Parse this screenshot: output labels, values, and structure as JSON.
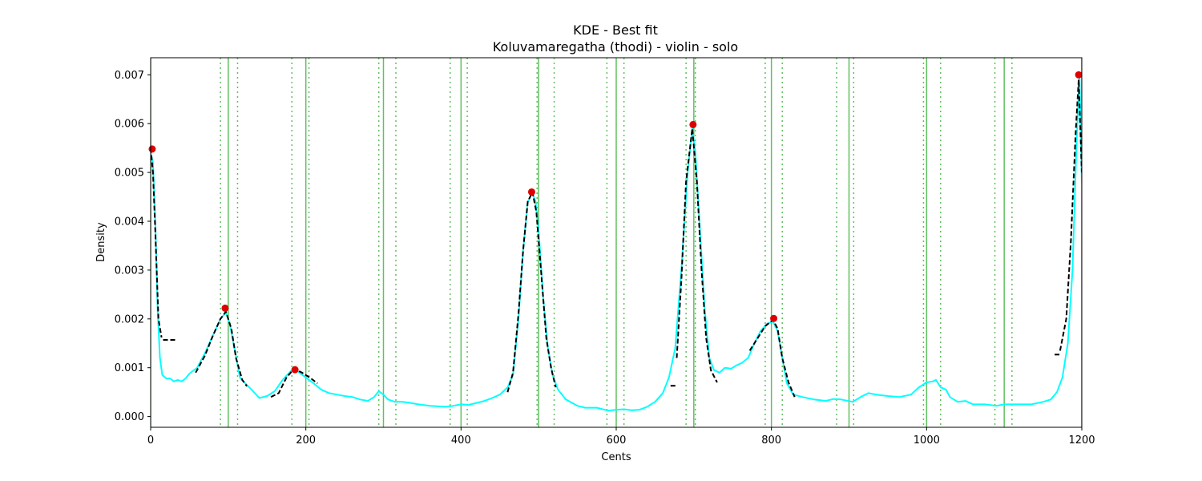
{
  "chart_data": {
    "type": "line",
    "title": "KDE - Best fit",
    "subtitle": "Koluvamaregatha (thodi) - violin - solo",
    "xlabel": "Cents",
    "ylabel": "Density",
    "xlim": [
      0,
      1200
    ],
    "ylim": [
      -0.00022,
      0.00735
    ],
    "xticks": [
      0,
      200,
      400,
      600,
      800,
      1000,
      1200
    ],
    "yticks": [
      0.0,
      0.001,
      0.002,
      0.003,
      0.004,
      0.005,
      0.006,
      0.007
    ],
    "ytick_labels": [
      "0.000",
      "0.001",
      "0.002",
      "0.003",
      "0.004",
      "0.005",
      "0.006",
      "0.007"
    ],
    "grid": false,
    "colors": {
      "kde": "#00ffff",
      "fit": "#000000",
      "peak": "#dd0000",
      "ref_line": "#4fba4f"
    },
    "reference_lines": [
      0,
      100,
      200,
      300,
      400,
      500,
      600,
      700,
      800,
      900,
      1000,
      1100,
      1200
    ],
    "reference_bounds": [
      90,
      112,
      182,
      204,
      294,
      316,
      386,
      408,
      498,
      520,
      588,
      610,
      690,
      702,
      792,
      814,
      884,
      906,
      996,
      1018,
      1088,
      1110
    ],
    "kde_curve": [
      [
        0,
        0.0054
      ],
      [
        3,
        0.0052
      ],
      [
        6,
        0.004
      ],
      [
        9,
        0.0022
      ],
      [
        12,
        0.0012
      ],
      [
        15,
        0.00085
      ],
      [
        20,
        0.00078
      ],
      [
        25,
        0.00078
      ],
      [
        30,
        0.00072
      ],
      [
        35,
        0.00075
      ],
      [
        40,
        0.00072
      ],
      [
        45,
        0.00078
      ],
      [
        50,
        0.00088
      ],
      [
        60,
        0.001
      ],
      [
        70,
        0.0013
      ],
      [
        80,
        0.00165
      ],
      [
        90,
        0.002
      ],
      [
        97,
        0.00213
      ],
      [
        102,
        0.0019
      ],
      [
        108,
        0.0014
      ],
      [
        115,
        0.0008
      ],
      [
        122,
        0.00068
      ],
      [
        130,
        0.00055
      ],
      [
        140,
        0.00038
      ],
      [
        150,
        0.00042
      ],
      [
        160,
        0.00052
      ],
      [
        170,
        0.00075
      ],
      [
        180,
        0.00092
      ],
      [
        185,
        0.00098
      ],
      [
        190,
        0.00092
      ],
      [
        200,
        0.0008
      ],
      [
        210,
        0.00068
      ],
      [
        220,
        0.00055
      ],
      [
        230,
        0.00048
      ],
      [
        240,
        0.00045
      ],
      [
        250,
        0.00042
      ],
      [
        260,
        0.0004
      ],
      [
        270,
        0.00035
      ],
      [
        280,
        0.00032
      ],
      [
        288,
        0.0004
      ],
      [
        294,
        0.00052
      ],
      [
        300,
        0.00045
      ],
      [
        306,
        0.00035
      ],
      [
        315,
        0.0003
      ],
      [
        325,
        0.0003
      ],
      [
        335,
        0.00028
      ],
      [
        345,
        0.00025
      ],
      [
        360,
        0.00022
      ],
      [
        380,
        0.0002
      ],
      [
        390,
        0.00022
      ],
      [
        400,
        0.00025
      ],
      [
        410,
        0.00024
      ],
      [
        420,
        0.00028
      ],
      [
        430,
        0.00032
      ],
      [
        440,
        0.00038
      ],
      [
        450,
        0.00045
      ],
      [
        460,
        0.0006
      ],
      [
        467,
        0.00085
      ],
      [
        474,
        0.002
      ],
      [
        480,
        0.0034
      ],
      [
        486,
        0.0044
      ],
      [
        492,
        0.00458
      ],
      [
        496,
        0.0044
      ],
      [
        500,
        0.0038
      ],
      [
        506,
        0.0024
      ],
      [
        512,
        0.0014
      ],
      [
        518,
        0.00085
      ],
      [
        525,
        0.00055
      ],
      [
        535,
        0.00035
      ],
      [
        550,
        0.00022
      ],
      [
        560,
        0.00018
      ],
      [
        575,
        0.00018
      ],
      [
        590,
        0.00012
      ],
      [
        600,
        0.00014
      ],
      [
        610,
        0.00015
      ],
      [
        620,
        0.00013
      ],
      [
        630,
        0.00014
      ],
      [
        640,
        0.0002
      ],
      [
        650,
        0.0003
      ],
      [
        660,
        0.00048
      ],
      [
        668,
        0.0008
      ],
      [
        676,
        0.0014
      ],
      [
        684,
        0.003
      ],
      [
        692,
        0.005
      ],
      [
        698,
        0.0059
      ],
      [
        702,
        0.0054
      ],
      [
        708,
        0.0038
      ],
      [
        714,
        0.0022
      ],
      [
        720,
        0.0012
      ],
      [
        726,
        0.00095
      ],
      [
        733,
        0.0009
      ],
      [
        740,
        0.001
      ],
      [
        748,
        0.00098
      ],
      [
        755,
        0.00105
      ],
      [
        762,
        0.0011
      ],
      [
        770,
        0.0012
      ],
      [
        778,
        0.0015
      ],
      [
        786,
        0.00175
      ],
      [
        794,
        0.0019
      ],
      [
        802,
        0.00195
      ],
      [
        808,
        0.00175
      ],
      [
        814,
        0.0012
      ],
      [
        820,
        0.00068
      ],
      [
        828,
        0.00045
      ],
      [
        840,
        0.0004
      ],
      [
        855,
        0.00035
      ],
      [
        870,
        0.00032
      ],
      [
        880,
        0.00036
      ],
      [
        890,
        0.00035
      ],
      [
        905,
        0.0003
      ],
      [
        915,
        0.0004
      ],
      [
        925,
        0.00048
      ],
      [
        935,
        0.00045
      ],
      [
        950,
        0.00042
      ],
      [
        965,
        0.0004
      ],
      [
        980,
        0.00045
      ],
      [
        990,
        0.0006
      ],
      [
        1000,
        0.0007
      ],
      [
        1008,
        0.00072
      ],
      [
        1012,
        0.00075
      ],
      [
        1018,
        0.0006
      ],
      [
        1025,
        0.00055
      ],
      [
        1030,
        0.0004
      ],
      [
        1040,
        0.0003
      ],
      [
        1050,
        0.00032
      ],
      [
        1060,
        0.00025
      ],
      [
        1075,
        0.00025
      ],
      [
        1090,
        0.00022
      ],
      [
        1100,
        0.00025
      ],
      [
        1120,
        0.00025
      ],
      [
        1135,
        0.00025
      ],
      [
        1150,
        0.0003
      ],
      [
        1160,
        0.00035
      ],
      [
        1168,
        0.0005
      ],
      [
        1175,
        0.0008
      ],
      [
        1182,
        0.0015
      ],
      [
        1188,
        0.003
      ],
      [
        1193,
        0.0055
      ],
      [
        1197,
        0.007
      ],
      [
        1200,
        0.0048
      ]
    ],
    "fit_segments": [
      [
        [
          0,
          0.0055
        ],
        [
          3,
          0.005
        ],
        [
          6,
          0.0038
        ],
        [
          10,
          0.002
        ],
        [
          14,
          0.00162
        ]
      ],
      [
        [
          16,
          0.00157
        ],
        [
          32,
          0.00157
        ]
      ],
      [
        [
          58,
          0.0009
        ],
        [
          70,
          0.00125
        ],
        [
          80,
          0.00165
        ],
        [
          90,
          0.002
        ],
        [
          97,
          0.00215
        ],
        [
          104,
          0.0018
        ],
        [
          110,
          0.0012
        ],
        [
          118,
          0.00075
        ],
        [
          124,
          0.00062
        ]
      ],
      [
        [
          155,
          0.0004
        ],
        [
          165,
          0.00048
        ],
        [
          175,
          0.0008
        ],
        [
          185,
          0.00098
        ],
        [
          195,
          0.0009
        ],
        [
          205,
          0.0008
        ],
        [
          215,
          0.00068
        ]
      ],
      [
        [
          460,
          0.0005
        ],
        [
          467,
          0.0009
        ],
        [
          474,
          0.0021
        ],
        [
          480,
          0.0034
        ],
        [
          486,
          0.0044
        ],
        [
          492,
          0.0046
        ],
        [
          497,
          0.0042
        ],
        [
          503,
          0.003
        ],
        [
          510,
          0.0016
        ],
        [
          516,
          0.001
        ],
        [
          522,
          0.0006
        ]
      ],
      [
        [
          670,
          0.00063
        ],
        [
          678,
          0.00063
        ]
      ],
      [
        [
          678,
          0.0012
        ],
        [
          684,
          0.0028
        ],
        [
          690,
          0.0048
        ],
        [
          698,
          0.0059
        ],
        [
          704,
          0.0048
        ],
        [
          710,
          0.003
        ],
        [
          716,
          0.0016
        ],
        [
          722,
          0.00095
        ],
        [
          730,
          0.0007
        ]
      ],
      [
        [
          772,
          0.00135
        ],
        [
          782,
          0.0016
        ],
        [
          792,
          0.00185
        ],
        [
          802,
          0.00198
        ],
        [
          808,
          0.0018
        ],
        [
          814,
          0.0012
        ],
        [
          822,
          0.0007
        ],
        [
          830,
          0.0004
        ]
      ],
      [
        [
          1165,
          0.00127
        ],
        [
          1172,
          0.00127
        ]
      ],
      [
        [
          1172,
          0.00135
        ],
        [
          1180,
          0.002
        ],
        [
          1186,
          0.0036
        ],
        [
          1192,
          0.0058
        ],
        [
          1196,
          0.0069
        ],
        [
          1200,
          0.005
        ]
      ]
    ],
    "peaks": [
      {
        "x": 2,
        "y": 0.00548
      },
      {
        "x": 96,
        "y": 0.00222
      },
      {
        "x": 186,
        "y": 0.00096
      },
      {
        "x": 491,
        "y": 0.0046
      },
      {
        "x": 699,
        "y": 0.00598
      },
      {
        "x": 803,
        "y": 0.00201
      },
      {
        "x": 1196,
        "y": 0.007
      }
    ]
  }
}
